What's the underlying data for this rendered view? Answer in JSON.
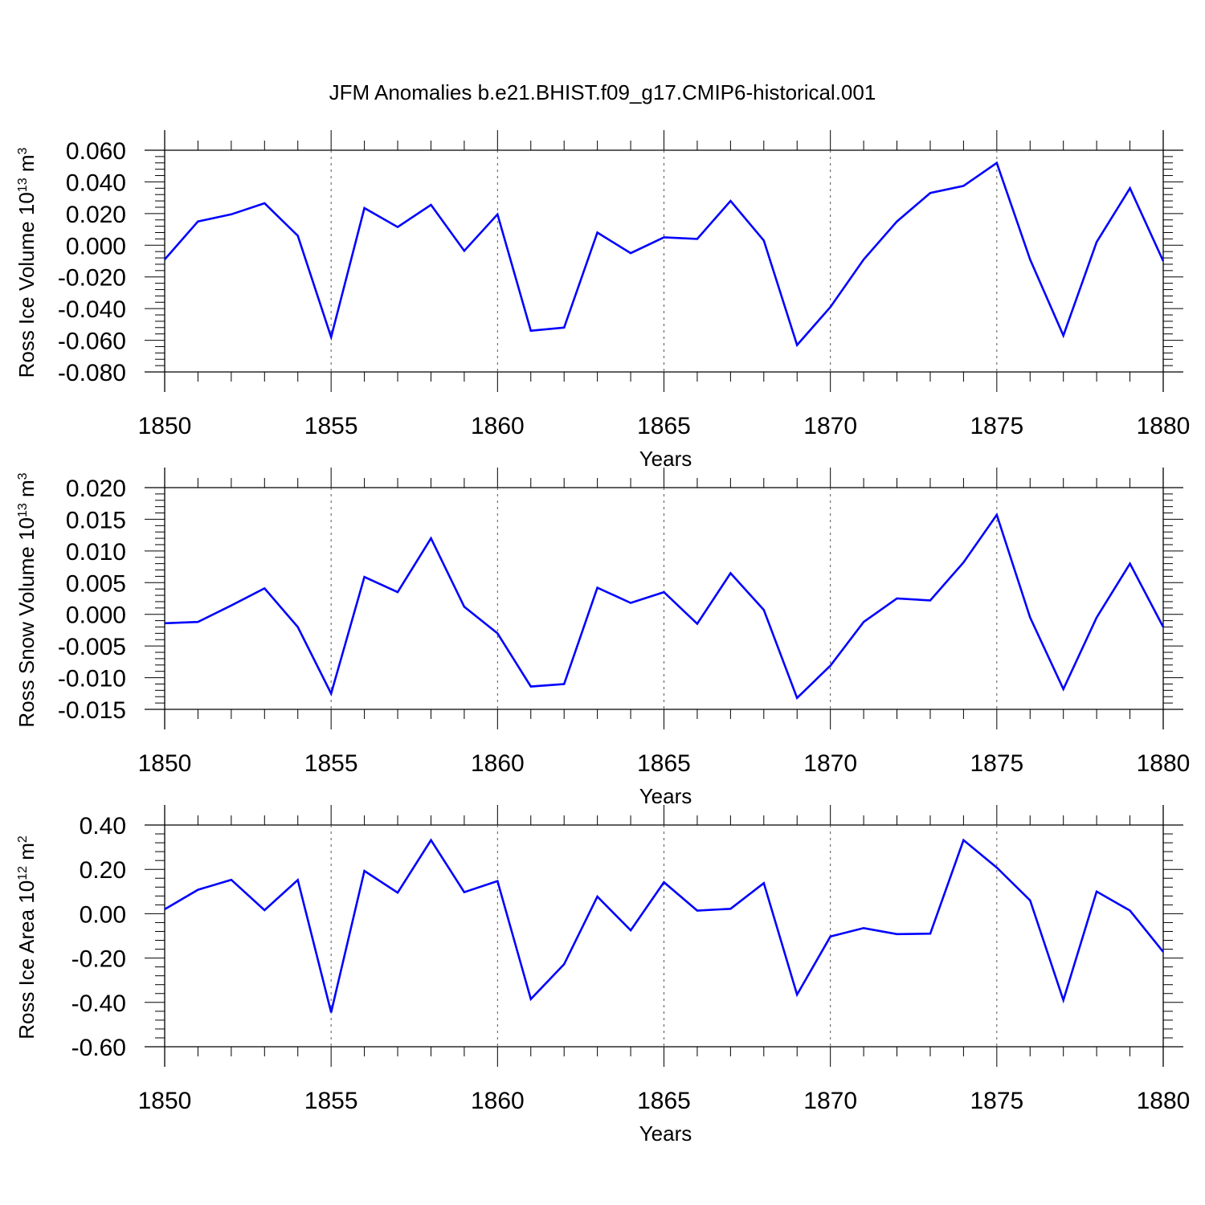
{
  "figure": {
    "title": "JFM Anomalies b.e21.BHIST.f09_g17.CMIP6-historical.001",
    "line_color": "#0000ff"
  },
  "chart_data": [
    {
      "type": "line",
      "title": "",
      "xlabel": "Years",
      "ylabel": {
        "text": "Ross Ice Volume 10",
        "sup": "13",
        "unit": " m",
        "unit_sup": "3"
      },
      "xlim": [
        1850,
        1880
      ],
      "ylim": [
        -0.08,
        0.06
      ],
      "xticks": [
        1850,
        1855,
        1860,
        1865,
        1870,
        1875,
        1880
      ],
      "xtick_labels": [
        "1850",
        "1855",
        "1860",
        "1865",
        "1870",
        "1875",
        "1880"
      ],
      "yticks": [
        0.06,
        0.04,
        0.02,
        0.0,
        -0.02,
        -0.04,
        -0.06,
        -0.08
      ],
      "ytick_labels": [
        "0.060",
        "0.040",
        "0.020",
        "0.000",
        "-0.020",
        "-0.040",
        "-0.060",
        "-0.080"
      ],
      "grid": "x-dashed",
      "legend": "none",
      "series": [
        {
          "color": "#0000ff",
          "x": [
            1850,
            1851,
            1852,
            1853,
            1854,
            1855,
            1856,
            1857,
            1858,
            1859,
            1860,
            1861,
            1862,
            1863,
            1864,
            1865,
            1866,
            1867,
            1868,
            1869,
            1870,
            1871,
            1872,
            1873,
            1874,
            1875,
            1876,
            1877,
            1878,
            1879,
            1880
          ],
          "y": [
            -0.009,
            0.015,
            0.0195,
            0.0265,
            0.006,
            -0.058,
            0.0235,
            0.0115,
            0.0255,
            -0.0035,
            0.0195,
            -0.054,
            -0.052,
            0.008,
            -0.005,
            0.005,
            0.004,
            0.028,
            0.003,
            -0.063,
            -0.039,
            -0.009,
            0.015,
            0.033,
            0.0375,
            0.052,
            -0.009,
            -0.057,
            0.002,
            0.036,
            -0.01
          ]
        }
      ]
    },
    {
      "type": "line",
      "title": "",
      "xlabel": "Years",
      "ylabel": {
        "text": "Ross Snow Volume 10",
        "sup": "13",
        "unit": " m",
        "unit_sup": "3"
      },
      "xlim": [
        1850,
        1880
      ],
      "ylim": [
        -0.015,
        0.02
      ],
      "xticks": [
        1850,
        1855,
        1860,
        1865,
        1870,
        1875,
        1880
      ],
      "xtick_labels": [
        "1850",
        "1855",
        "1860",
        "1865",
        "1870",
        "1875",
        "1880"
      ],
      "yticks": [
        0.02,
        0.015,
        0.01,
        0.005,
        0.0,
        -0.005,
        -0.01,
        -0.015
      ],
      "ytick_labels": [
        "0.020",
        "0.015",
        "0.010",
        "0.005",
        "0.000",
        "-0.005",
        "-0.010",
        "-0.015"
      ],
      "grid": "x-dashed",
      "legend": "none",
      "series": [
        {
          "color": "#0000ff",
          "x": [
            1850,
            1851,
            1852,
            1853,
            1854,
            1855,
            1856,
            1857,
            1858,
            1859,
            1860,
            1861,
            1862,
            1863,
            1864,
            1865,
            1866,
            1867,
            1868,
            1869,
            1870,
            1871,
            1872,
            1873,
            1874,
            1875,
            1876,
            1877,
            1878,
            1879,
            1880
          ],
          "y": [
            -0.0014,
            -0.0012,
            0.0014,
            0.0041,
            -0.002,
            -0.0125,
            0.0059,
            0.0035,
            0.012,
            0.0012,
            -0.003,
            -0.0114,
            -0.011,
            0.0042,
            0.0018,
            0.0035,
            -0.0015,
            0.0065,
            0.0007,
            -0.0132,
            -0.0081,
            -0.0012,
            0.0025,
            0.0022,
            0.0082,
            0.0157,
            -0.0005,
            -0.0118,
            -0.0005,
            0.008,
            -0.002
          ]
        }
      ]
    },
    {
      "type": "line",
      "title": "",
      "xlabel": "Years",
      "ylabel": {
        "text": "Ross Ice Area 10",
        "sup": "12",
        "unit": " m",
        "unit_sup": "2"
      },
      "xlim": [
        1850,
        1880
      ],
      "ylim": [
        -0.6,
        0.4
      ],
      "xticks": [
        1850,
        1855,
        1860,
        1865,
        1870,
        1875,
        1880
      ],
      "xtick_labels": [
        "1850",
        "1855",
        "1860",
        "1865",
        "1870",
        "1875",
        "1880"
      ],
      "yticks": [
        0.4,
        0.2,
        0.0,
        -0.2,
        -0.4,
        -0.6
      ],
      "ytick_labels": [
        "0.40",
        "0.20",
        "0.00",
        "-0.20",
        "-0.40",
        "-0.60"
      ],
      "grid": "x-dashed",
      "legend": "none",
      "series": [
        {
          "color": "#0000ff",
          "x": [
            1850,
            1851,
            1852,
            1853,
            1854,
            1855,
            1856,
            1857,
            1858,
            1859,
            1860,
            1861,
            1862,
            1863,
            1864,
            1865,
            1866,
            1867,
            1868,
            1869,
            1870,
            1871,
            1872,
            1873,
            1874,
            1875,
            1876,
            1877,
            1878,
            1879,
            1880
          ],
          "y": [
            0.02,
            0.108,
            0.153,
            0.016,
            0.152,
            -0.445,
            0.193,
            0.095,
            0.332,
            0.097,
            0.147,
            -0.385,
            -0.228,
            0.077,
            -0.075,
            0.142,
            0.014,
            0.022,
            0.138,
            -0.365,
            -0.103,
            -0.065,
            -0.092,
            -0.09,
            0.332,
            0.208,
            0.06,
            -0.39,
            0.1,
            0.014,
            -0.172
          ]
        }
      ]
    }
  ]
}
